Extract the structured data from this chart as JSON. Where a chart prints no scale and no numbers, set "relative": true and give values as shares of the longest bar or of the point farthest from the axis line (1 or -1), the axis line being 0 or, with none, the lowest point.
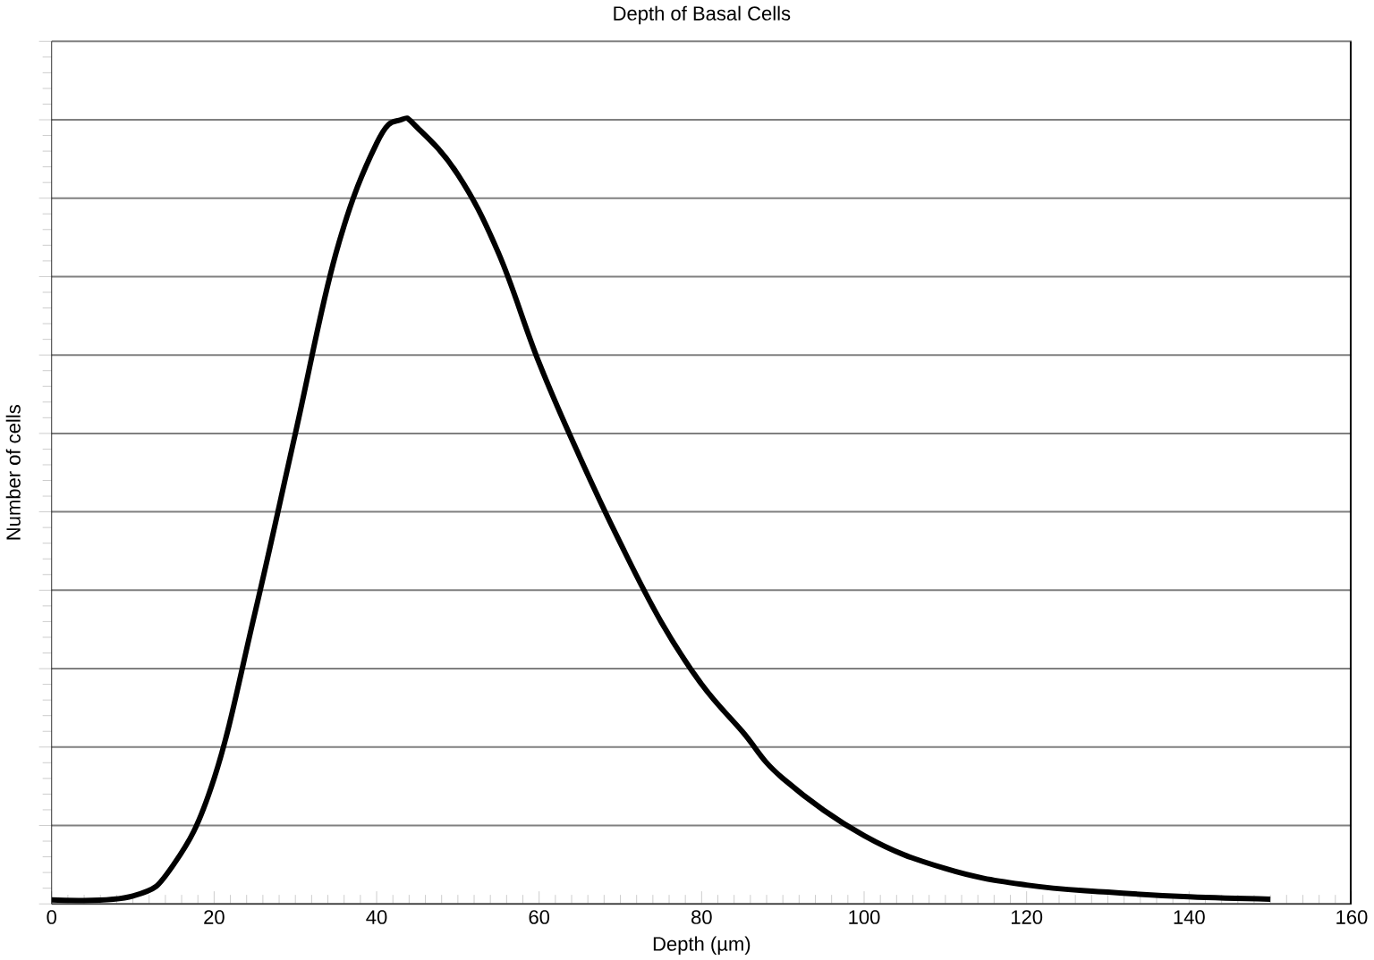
{
  "chart_data": {
    "type": "line",
    "title": "Depth of Basal Cells",
    "xlabel": "Depth (µm)",
    "ylabel": "Number of cells",
    "relative": true,
    "x": [
      0,
      10,
      15,
      20,
      25,
      30,
      35,
      40,
      43,
      45,
      50,
      55,
      60,
      65,
      70,
      75,
      80,
      85,
      90,
      100,
      110,
      120,
      130,
      140,
      150
    ],
    "series": [
      {
        "color": "#000000",
        "values": [
          0.005,
          0.01,
          0.05,
          0.16,
          0.37,
          0.6,
          0.83,
          0.97,
          1.0,
          0.99,
          0.93,
          0.83,
          0.69,
          0.57,
          0.46,
          0.36,
          0.28,
          0.22,
          0.16,
          0.087,
          0.045,
          0.024,
          0.015,
          0.009,
          0.006
        ]
      }
    ],
    "xlim": [
      0,
      160
    ],
    "xticks": [
      0,
      20,
      40,
      60,
      80,
      100,
      120,
      140,
      160
    ],
    "grid": "y",
    "marker": "none",
    "line_style": "solid"
  }
}
